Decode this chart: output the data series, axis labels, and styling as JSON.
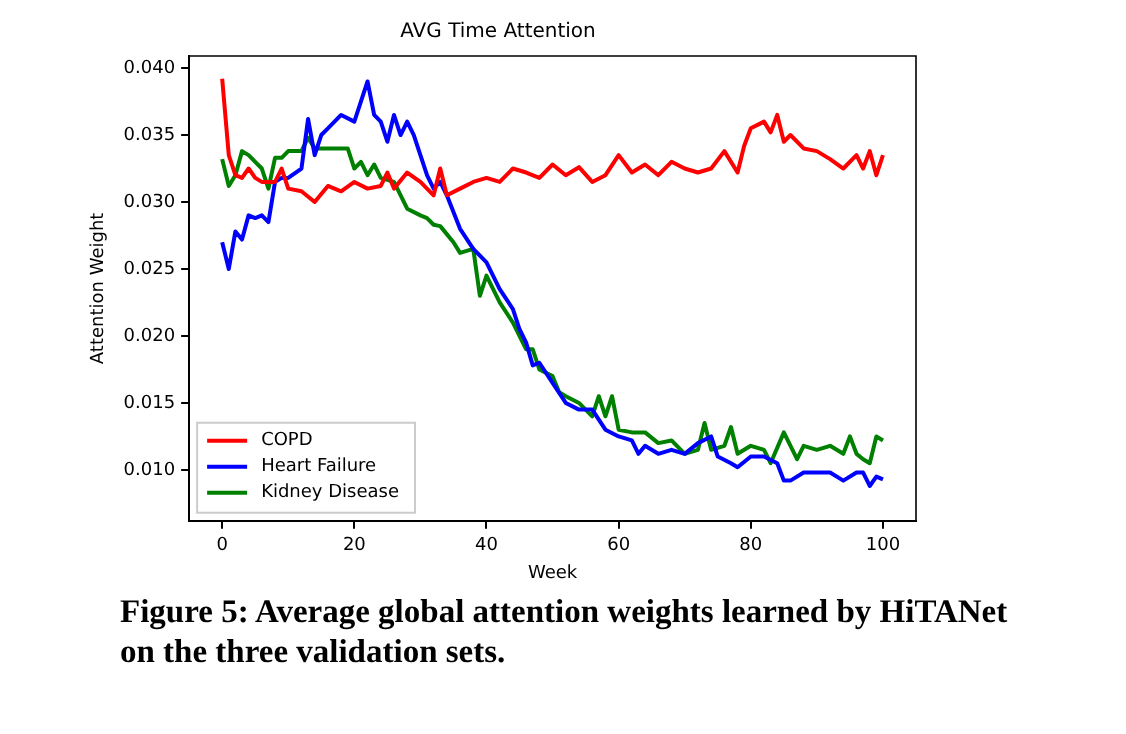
{
  "chart_data": {
    "type": "line",
    "title": "AVG Time Attention",
    "xlabel": "Week",
    "ylabel": "Attention Weight",
    "annotations": [
      "Figure 5: Average global attention weights learned by HiTANet on the three validation sets."
    ],
    "xlim": [
      -5,
      105
    ],
    "xticks": [
      0,
      20,
      40,
      60,
      80,
      100
    ],
    "ylim": [
      0.0062,
      0.0409
    ],
    "yticks": [
      {
        "value": 0.01,
        "label": "0.010"
      },
      {
        "value": 0.015,
        "label": "0.015"
      },
      {
        "value": 0.02,
        "label": "0.020"
      },
      {
        "value": 0.025,
        "label": "0.025"
      },
      {
        "value": 0.03,
        "label": "0.030"
      },
      {
        "value": 0.035,
        "label": "0.035"
      },
      {
        "value": 0.04,
        "label": "0.040"
      }
    ],
    "grid": false,
    "legend": "bottom left",
    "marker": "none",
    "line_style": "solid",
    "series": [
      {
        "name": "COPD",
        "color": "#ff0000",
        "x": [
          0,
          1,
          2,
          3,
          4,
          5,
          6,
          8,
          9,
          10,
          12,
          14,
          16,
          18,
          20,
          22,
          24,
          25,
          26,
          28,
          30,
          32,
          33,
          34,
          36,
          38,
          40,
          42,
          44,
          46,
          48,
          50,
          52,
          54,
          56,
          58,
          60,
          62,
          64,
          66,
          68,
          70,
          72,
          74,
          76,
          78,
          79,
          80,
          82,
          83,
          84,
          85,
          86,
          88,
          90,
          92,
          94,
          96,
          97,
          98,
          99,
          100
        ],
        "values": [
          0.0392,
          0.0335,
          0.032,
          0.0318,
          0.0325,
          0.0318,
          0.0315,
          0.0315,
          0.0325,
          0.031,
          0.0308,
          0.03,
          0.0312,
          0.0308,
          0.0315,
          0.031,
          0.0312,
          0.0322,
          0.031,
          0.0322,
          0.0315,
          0.0305,
          0.0325,
          0.0305,
          0.031,
          0.0315,
          0.0318,
          0.0315,
          0.0325,
          0.0322,
          0.0318,
          0.0328,
          0.032,
          0.0326,
          0.0315,
          0.032,
          0.0335,
          0.0322,
          0.0328,
          0.032,
          0.033,
          0.0325,
          0.0322,
          0.0325,
          0.0338,
          0.0322,
          0.0342,
          0.0355,
          0.036,
          0.0352,
          0.0365,
          0.0345,
          0.035,
          0.034,
          0.0338,
          0.0332,
          0.0325,
          0.0335,
          0.0325,
          0.0338,
          0.032,
          0.0335
        ]
      },
      {
        "name": "Heart Failure",
        "color": "#0000ff",
        "x": [
          0,
          1,
          2,
          3,
          4,
          5,
          6,
          7,
          8,
          9,
          10,
          12,
          13,
          14,
          15,
          16,
          18,
          20,
          22,
          23,
          24,
          25,
          26,
          27,
          28,
          29,
          30,
          31,
          32,
          33,
          34,
          36,
          38,
          40,
          42,
          44,
          45,
          46,
          47,
          48,
          50,
          52,
          54,
          56,
          58,
          60,
          62,
          63,
          64,
          66,
          68,
          70,
          72,
          74,
          75,
          77,
          78,
          80,
          82,
          84,
          85,
          86,
          88,
          90,
          92,
          94,
          96,
          97,
          98,
          99,
          100
        ],
        "values": [
          0.027,
          0.025,
          0.0278,
          0.0272,
          0.029,
          0.0288,
          0.029,
          0.0285,
          0.0315,
          0.0318,
          0.0318,
          0.0325,
          0.0362,
          0.0335,
          0.035,
          0.0355,
          0.0365,
          0.036,
          0.039,
          0.0365,
          0.036,
          0.0345,
          0.0365,
          0.035,
          0.036,
          0.035,
          0.0335,
          0.032,
          0.031,
          0.0315,
          0.0305,
          0.028,
          0.0265,
          0.0255,
          0.0235,
          0.022,
          0.0205,
          0.0195,
          0.0178,
          0.018,
          0.0165,
          0.015,
          0.0145,
          0.0145,
          0.013,
          0.0125,
          0.0122,
          0.0112,
          0.0118,
          0.0112,
          0.0115,
          0.0112,
          0.012,
          0.0125,
          0.011,
          0.0105,
          0.0102,
          0.011,
          0.011,
          0.0105,
          0.0092,
          0.0092,
          0.0098,
          0.0098,
          0.0098,
          0.0092,
          0.0098,
          0.0098,
          0.0088,
          0.0095,
          0.0093
        ]
      },
      {
        "name": "Kidney Disease",
        "color": "#008000",
        "x": [
          0,
          1,
          2,
          3,
          4,
          5,
          6,
          7,
          8,
          9,
          10,
          12,
          13,
          14,
          16,
          18,
          19,
          20,
          21,
          22,
          23,
          24,
          26,
          28,
          30,
          31,
          32,
          33,
          35,
          36,
          38,
          39,
          40,
          42,
          44,
          46,
          47,
          48,
          50,
          51,
          52,
          54,
          56,
          57,
          58,
          59,
          60,
          62,
          64,
          66,
          68,
          70,
          72,
          73,
          74,
          76,
          77,
          78,
          80,
          82,
          83,
          85,
          87,
          88,
          90,
          92,
          94,
          95,
          96,
          97,
          98,
          99,
          100
        ],
        "values": [
          0.0332,
          0.0312,
          0.032,
          0.0338,
          0.0335,
          0.033,
          0.0325,
          0.031,
          0.0333,
          0.0333,
          0.0338,
          0.0338,
          0.0348,
          0.034,
          0.034,
          0.034,
          0.034,
          0.0325,
          0.033,
          0.032,
          0.0328,
          0.0318,
          0.0315,
          0.0295,
          0.029,
          0.0288,
          0.0283,
          0.0282,
          0.027,
          0.0262,
          0.0265,
          0.023,
          0.0245,
          0.0225,
          0.021,
          0.019,
          0.019,
          0.0175,
          0.017,
          0.0158,
          0.0155,
          0.015,
          0.014,
          0.0155,
          0.014,
          0.0155,
          0.013,
          0.0128,
          0.0128,
          0.012,
          0.0122,
          0.0112,
          0.0115,
          0.0135,
          0.0115,
          0.0118,
          0.0132,
          0.0112,
          0.0118,
          0.0115,
          0.0105,
          0.0128,
          0.0108,
          0.0118,
          0.0115,
          0.0118,
          0.0112,
          0.0125,
          0.0112,
          0.0108,
          0.0105,
          0.0125,
          0.0122
        ]
      }
    ]
  }
}
